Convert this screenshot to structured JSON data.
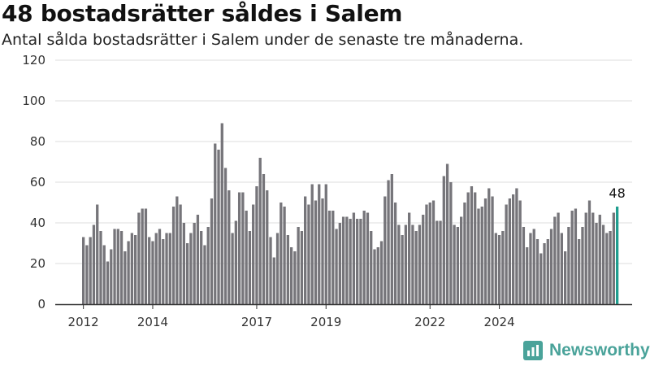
{
  "header": {
    "title": "48 bostadsrätter såldes i Salem",
    "subtitle": "Antal sålda bostadsrätter i Salem under de senaste tre månaderna."
  },
  "brand": {
    "name": "Newsworthy",
    "icon": "newsworthy-logo-icon"
  },
  "colors": {
    "bar": "#76757a",
    "highlight": "#1f9e8f",
    "grid": "#dddddd",
    "axis": "#333333"
  },
  "chart_data": {
    "type": "bar",
    "title": "48 bostadsrätter såldes i Salem",
    "subtitle": "Antal sålda bostadsrätter i Salem under de senaste tre månaderna.",
    "ylim": [
      0,
      120
    ],
    "yticks": [
      0,
      20,
      40,
      60,
      80,
      100,
      120
    ],
    "xticks": [
      "2012",
      "2014",
      "2017",
      "2019",
      "2022",
      "2024"
    ],
    "xtick_index": [
      0,
      20,
      50,
      70,
      100,
      120
    ],
    "grid": true,
    "highlight_label": "48",
    "values": [
      33,
      29,
      33,
      39,
      49,
      36,
      29,
      21,
      27,
      37,
      37,
      36,
      26,
      31,
      35,
      34,
      45,
      47,
      47,
      33,
      31,
      35,
      37,
      32,
      35,
      35,
      48,
      53,
      49,
      40,
      30,
      35,
      40,
      44,
      36,
      29,
      38,
      52,
      79,
      76,
      89,
      67,
      56,
      35,
      41,
      55,
      55,
      46,
      36,
      49,
      58,
      72,
      64,
      56,
      33,
      23,
      35,
      50,
      48,
      34,
      28,
      26,
      38,
      36,
      53,
      49,
      59,
      51,
      59,
      52,
      59,
      46,
      46,
      37,
      40,
      43,
      43,
      42,
      45,
      42,
      42,
      46,
      45,
      36,
      27,
      28,
      31,
      53,
      61,
      64,
      50,
      39,
      34,
      39,
      45,
      39,
      36,
      39,
      44,
      49,
      50,
      51,
      41,
      41,
      63,
      69,
      60,
      39,
      38,
      43,
      50,
      55,
      58,
      55,
      47,
      48,
      52,
      57,
      53,
      35,
      34,
      36,
      49,
      52,
      54,
      57,
      51,
      38,
      28,
      35,
      37,
      32,
      25,
      30,
      32,
      37,
      43,
      45,
      35,
      26,
      38,
      46,
      47,
      32,
      38,
      45,
      51,
      45,
      40,
      44,
      39,
      35,
      36,
      45,
      48
    ]
  }
}
